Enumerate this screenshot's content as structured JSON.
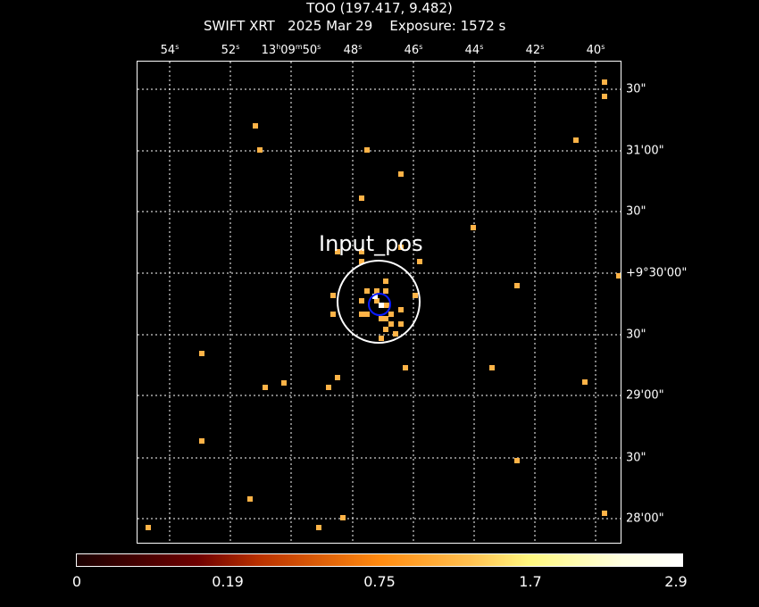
{
  "title": "TOO (197.417, 9.482)",
  "subtitle": {
    "instrument": "SWIFT XRT",
    "date": "2025 Mar 29",
    "exposure": "Exposure: 1572 s"
  },
  "ra_labels": [
    "54",
    "52",
    "13h09m50",
    "48",
    "46",
    "44",
    "42",
    "40"
  ],
  "dec_labels": [
    "30\"",
    "31'00\"",
    "30\"",
    "+9°30'00\"",
    "30\"",
    "29'00\"",
    "30\"",
    "28'00\""
  ],
  "source_label": "Input_pos",
  "colorbar": {
    "labels": [
      "0",
      "0.19",
      "0.75",
      "1.7",
      "2.9"
    ],
    "colormap": "hot"
  },
  "colors": {
    "photon": "#ffb347",
    "source_circle": "#ffffff",
    "psf_circle": "#0a1cff"
  }
}
